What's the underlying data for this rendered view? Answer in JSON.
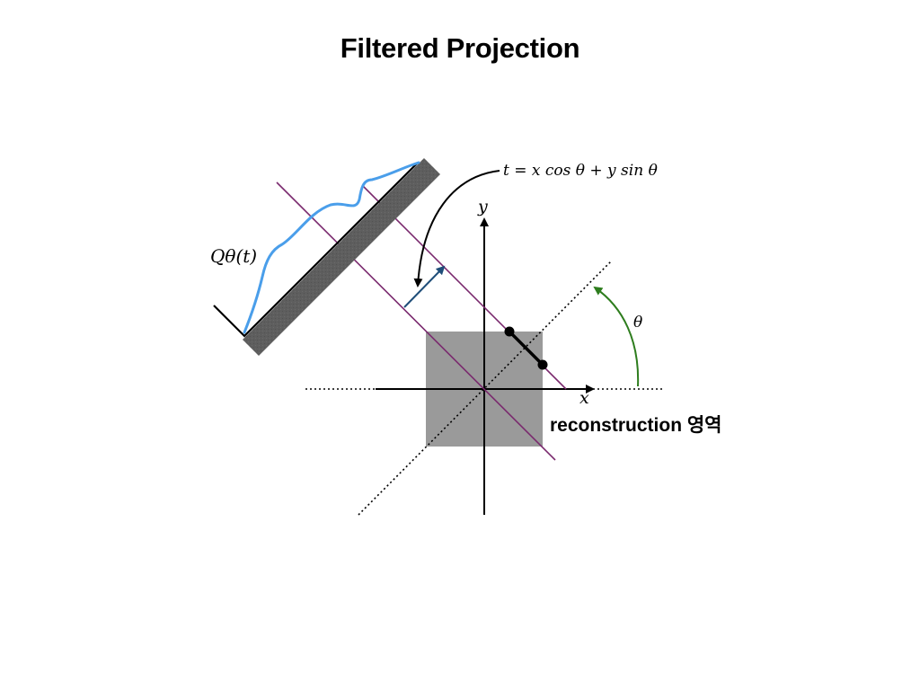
{
  "title": "Filtered Projection",
  "labels": {
    "formula": "t = x cos θ + y sin θ",
    "y_axis": "y",
    "x_axis": "x",
    "projection": "Qθ(t)",
    "angle": "θ",
    "region": "reconstruction 영역"
  },
  "colors": {
    "detector": "#5e5e5e",
    "projection_curve": "#4a9eea",
    "ray_lines": "#7a2a6e",
    "region": "#9a9a9a",
    "angle_arc": "#2e7d1e",
    "direction_arrow": "#1f4e79"
  }
}
